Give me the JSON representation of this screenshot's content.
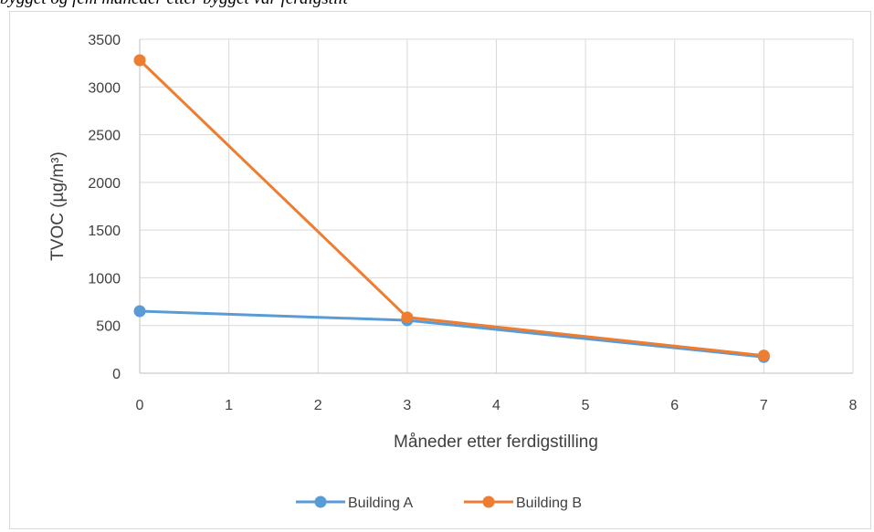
{
  "caption": "bygget og fem måneder etter bygget var ferdigstilt",
  "chart_data": {
    "type": "line",
    "title": "",
    "xlabel": "Måneder etter ferdigstilling",
    "ylabel": "TVOC (µg/m³)",
    "xlim": [
      0,
      8
    ],
    "ylim": [
      0,
      3500
    ],
    "xticks": [
      0,
      1,
      2,
      3,
      4,
      5,
      6,
      7,
      8
    ],
    "yticks": [
      0,
      500,
      1000,
      1500,
      2000,
      2500,
      3000,
      3500
    ],
    "grid": true,
    "legend_position": "bottom",
    "series": [
      {
        "name": "Building A",
        "color": "#5b9bd5",
        "x": [
          0,
          3,
          7
        ],
        "y": [
          650,
          555,
          170
        ]
      },
      {
        "name": "Building B",
        "color": "#ed7d31",
        "x": [
          0,
          3,
          7
        ],
        "y": [
          3280,
          585,
          185
        ]
      }
    ]
  }
}
